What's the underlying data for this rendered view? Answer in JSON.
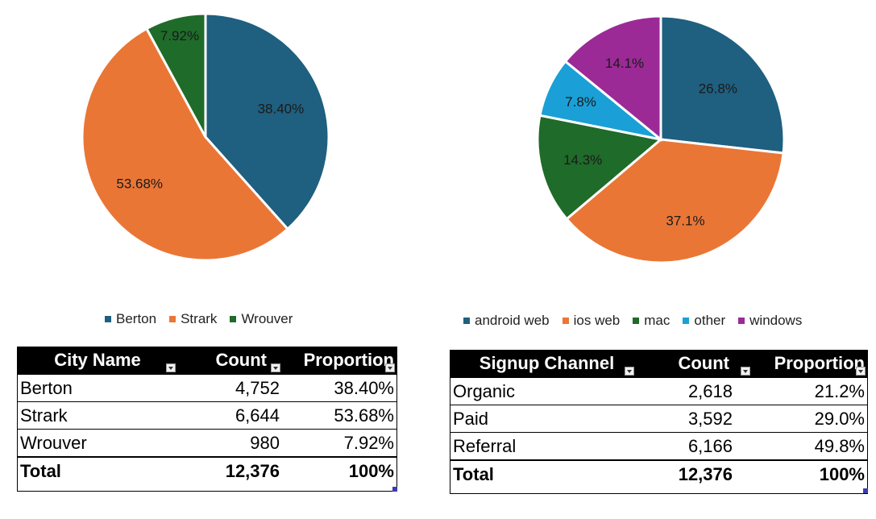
{
  "chart_data": [
    {
      "type": "pie",
      "title": "",
      "categories": [
        "Berton",
        "Strark",
        "Wrouver"
      ],
      "values": [
        38.4,
        53.68,
        7.92
      ],
      "labels": [
        "38.40%",
        "53.68%",
        "7.92%"
      ],
      "colors": [
        "#1f5f7f",
        "#ea7636",
        "#1f6b2a"
      ],
      "legend": "bottom"
    },
    {
      "type": "pie",
      "title": "",
      "categories": [
        "android web",
        "ios web",
        "mac",
        "other",
        "windows"
      ],
      "values": [
        26.8,
        37.1,
        14.3,
        7.8,
        14.1
      ],
      "labels": [
        "26.8%",
        "37.1%",
        "14.3%",
        "7.8%",
        "14.1%"
      ],
      "colors": [
        "#1f5f7f",
        "#ea7636",
        "#1f6b2a",
        "#1aa0d6",
        "#9b2a96"
      ],
      "legend": "bottom"
    }
  ],
  "table_city": {
    "headers": [
      "City Name",
      "Count",
      "Proportion"
    ],
    "rows": [
      [
        "Berton",
        "4,752",
        "38.40%"
      ],
      [
        "Strark",
        "6,644",
        "53.68%"
      ],
      [
        "Wrouver",
        "980",
        "7.92%"
      ]
    ],
    "total": [
      "Total",
      "12,376",
      "100%"
    ]
  },
  "table_signup": {
    "headers": [
      "Signup Channel",
      "Count",
      "Proportion"
    ],
    "rows": [
      [
        "Organic",
        "2,618",
        "21.2%"
      ],
      [
        "Paid",
        "3,592",
        "29.0%"
      ],
      [
        "Referral",
        "6,166",
        "49.8%"
      ]
    ],
    "total": [
      "Total",
      "12,376",
      "100%"
    ]
  }
}
